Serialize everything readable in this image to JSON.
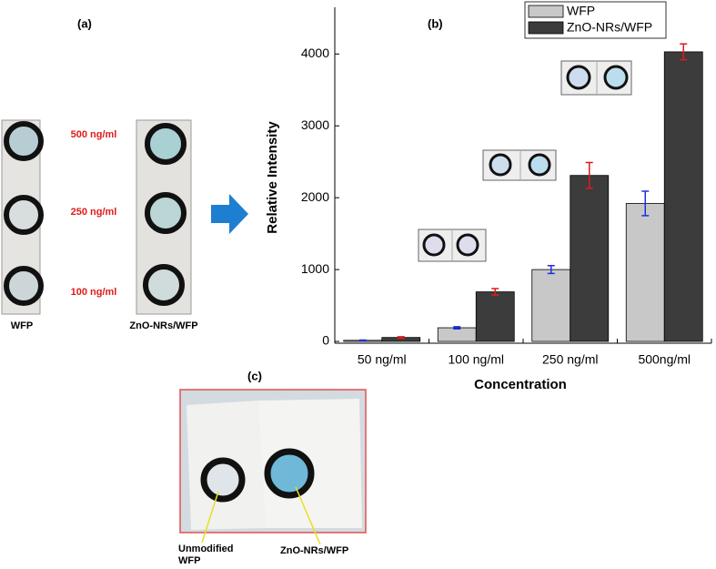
{
  "chart_data": {
    "type": "bar",
    "panel_label": "(b)",
    "x_label": "Concentration",
    "y_label": "Relative Intensity",
    "categories": [
      "50 ng/ml",
      "100 ng/ml",
      "250 ng/ml",
      "500ng/ml"
    ],
    "series": [
      {
        "name": "WFP",
        "color": "#c8c8c8",
        "error_color": "#1f2fe0",
        "values": [
          15,
          190,
          1000,
          1920
        ],
        "errors": [
          5,
          15,
          55,
          170
        ]
      },
      {
        "name": "ZnO-NRs/WFP",
        "color": "#3c3c3c",
        "error_color": "#e01a1a",
        "values": [
          55,
          690,
          2310,
          4030
        ],
        "errors": [
          10,
          45,
          180,
          110
        ]
      }
    ],
    "ylim": [
      -25,
      4650
    ],
    "yticks": [
      0,
      1000,
      2000,
      3000,
      4000
    ],
    "grid": false,
    "legend": "top-right"
  },
  "panel_a": {
    "label": "(a)",
    "strips": [
      "WFP",
      "ZnO-NRs/WFP"
    ],
    "concentrations": [
      "500 ng/ml",
      "250 ng/ml",
      "100 ng/ml"
    ]
  },
  "panel_c": {
    "label": "(c)",
    "annotations": [
      "Unmodified WFP",
      "ZnO-NRs/WFP"
    ]
  }
}
